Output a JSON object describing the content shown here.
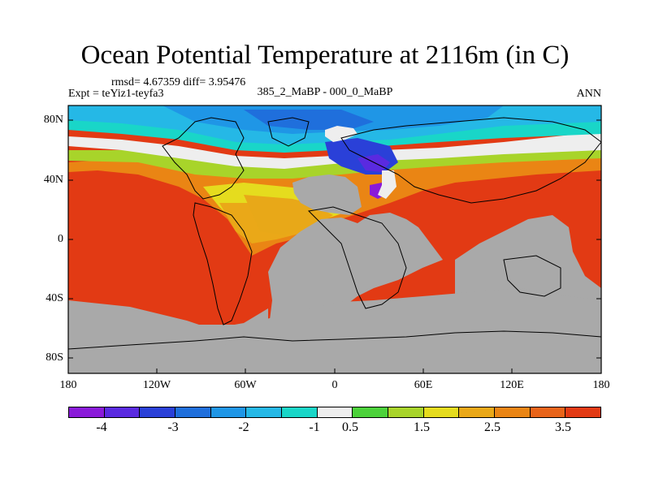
{
  "title": "Ocean Potential Temperature at 2116m (in C)",
  "stats": "rmsd= 4.67359 diff= 3.95476",
  "experiment": "Expt = teYiz1-teyfa3",
  "center_label": "385_2_MaBP - 000_0_MaBP",
  "right_label": "ANN",
  "yticks": [
    "80N",
    "40N",
    "0",
    "40S",
    "80S"
  ],
  "xticks": [
    "180",
    "120W",
    "60W",
    "0",
    "60E",
    "120E",
    "180"
  ],
  "colorbar": {
    "colors": [
      "#8a1ad9",
      "#5a2ae0",
      "#2a40d8",
      "#1f6fdc",
      "#1f96e6",
      "#25b8e6",
      "#19d6c8",
      "#eeeeee",
      "#4cd23a",
      "#a8d42a",
      "#e5dc1e",
      "#eaa818",
      "#ea8514",
      "#e8641a",
      "#e23a14"
    ],
    "labels": [
      "-4",
      "-3",
      "-2",
      "-1",
      "0.5",
      "1.5",
      "2.5",
      "3.5"
    ]
  },
  "colors": {
    "warm": "#e23a14",
    "land": "#a9a9a9",
    "coast": "#000000"
  }
}
